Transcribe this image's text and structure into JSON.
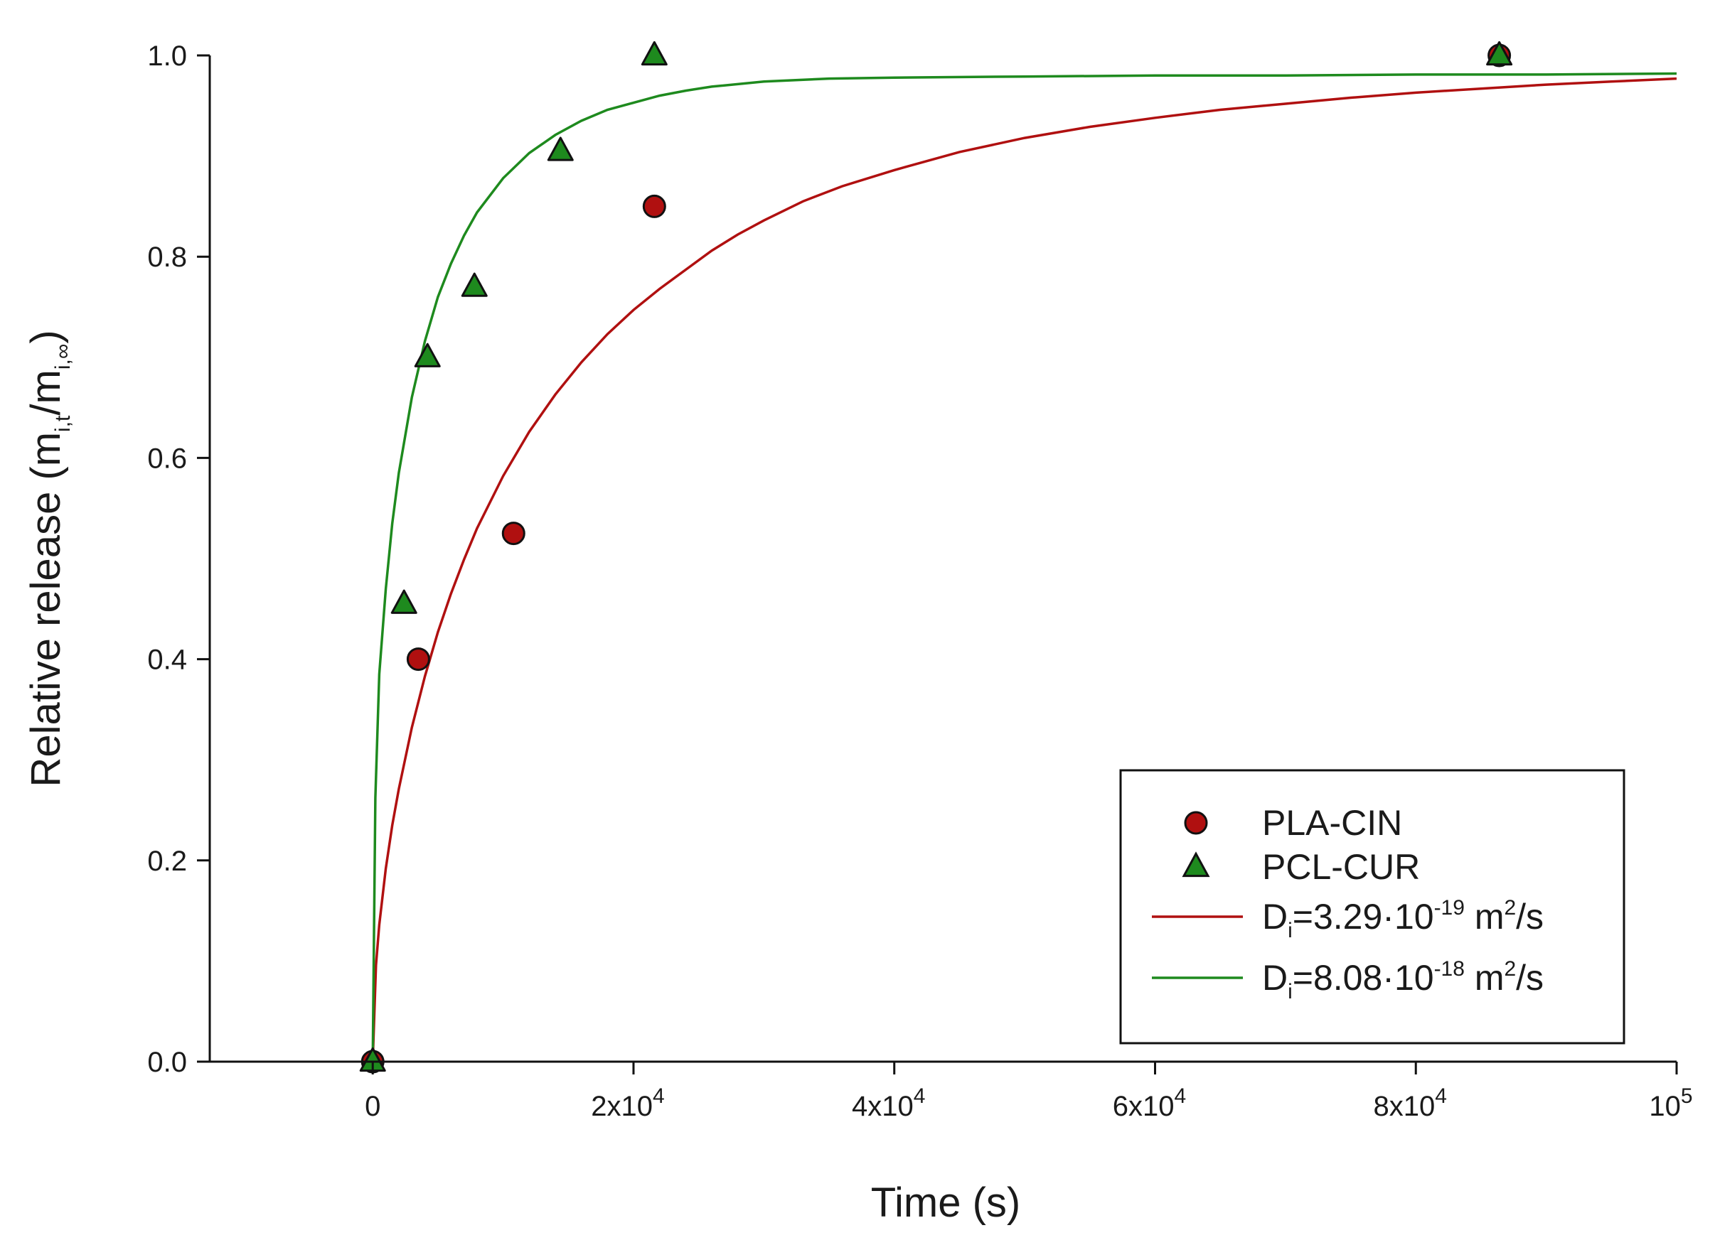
{
  "chart_data": {
    "type": "scatter",
    "xlabel": "Time (s)",
    "ylabel_main": "Relative release (m",
    "ylabel_sub1": "i,t",
    "ylabel_mid": "/m",
    "ylabel_sub2": "i,∞",
    "ylabel_end": ")",
    "xlim": [
      -12500,
      100000
    ],
    "ylim": [
      0,
      1.0
    ],
    "x_ticks": [
      {
        "value": 0,
        "base": "0",
        "exp": ""
      },
      {
        "value": 20000,
        "base": "2x10",
        "exp": "4"
      },
      {
        "value": 40000,
        "base": "4x10",
        "exp": "4"
      },
      {
        "value": 60000,
        "base": "6x10",
        "exp": "4"
      },
      {
        "value": 80000,
        "base": "8x10",
        "exp": "4"
      },
      {
        "value": 100000,
        "base": "10",
        "exp": "5"
      }
    ],
    "y_ticks": [
      {
        "value": 0.0,
        "label": "0.0"
      },
      {
        "value": 0.2,
        "label": "0.2"
      },
      {
        "value": 0.4,
        "label": "0.4"
      },
      {
        "value": 0.6,
        "label": "0.6"
      },
      {
        "value": 0.8,
        "label": "0.8"
      },
      {
        "value": 1.0,
        "label": "1.0"
      }
    ],
    "grid": false,
    "legend_position": "bottom-right",
    "series": [
      {
        "name": "PLA-CIN",
        "kind": "points",
        "marker": "circle",
        "color": "#b01010",
        "x": [
          0,
          3500,
          10800,
          21600,
          86400
        ],
        "y": [
          0.0,
          0.4,
          0.525,
          0.85,
          1.0
        ]
      },
      {
        "name": "PCL-CUR",
        "kind": "points",
        "marker": "triangle",
        "color": "#1e8a1e",
        "x": [
          0,
          2400,
          4200,
          7800,
          14400,
          21600,
          86400
        ],
        "y": [
          0.0,
          0.455,
          0.7,
          0.77,
          0.905,
          1.0,
          1.0
        ]
      },
      {
        "name_prefix": "D",
        "name_sub": "i",
        "name_value": "=3.29·10",
        "name_exp": "-19",
        "name_unit": " m",
        "name_unit_exp": "2",
        "name_unit_end": "/s",
        "kind": "curve",
        "color": "#b01010",
        "x": [
          0,
          250,
          500,
          1000,
          1500,
          2000,
          3000,
          4000,
          5000,
          6000,
          7000,
          8000,
          10000,
          12000,
          14000,
          16000,
          18000,
          20000,
          22000,
          24000,
          26000,
          28000,
          30000,
          33000,
          36000,
          40000,
          45000,
          50000,
          55000,
          60000,
          65000,
          70000,
          75000,
          80000,
          85000,
          90000,
          95000,
          100000
        ],
        "y": [
          0.0,
          0.096,
          0.136,
          0.192,
          0.235,
          0.271,
          0.332,
          0.383,
          0.427,
          0.465,
          0.499,
          0.53,
          0.582,
          0.626,
          0.663,
          0.695,
          0.723,
          0.747,
          0.768,
          0.787,
          0.806,
          0.822,
          0.836,
          0.855,
          0.87,
          0.886,
          0.904,
          0.918,
          0.929,
          0.938,
          0.946,
          0.952,
          0.958,
          0.963,
          0.967,
          0.971,
          0.974,
          0.977
        ]
      },
      {
        "name_prefix": "D",
        "name_sub": "i",
        "name_value": "=8.08·10",
        "name_exp": "-18",
        "name_unit": " m",
        "name_unit_exp": "2",
        "name_unit_end": "/s",
        "kind": "curve",
        "color": "#1e8a1e",
        "x": [
          0,
          200,
          500,
          1000,
          1500,
          2000,
          3000,
          4000,
          5000,
          6000,
          7000,
          8000,
          10000,
          12000,
          14000,
          16000,
          18000,
          20000,
          22000,
          24000,
          26000,
          30000,
          35000,
          40000,
          50000,
          60000,
          70000,
          80000,
          90000,
          100000
        ],
        "y": [
          0.0,
          0.262,
          0.385,
          0.47,
          0.535,
          0.585,
          0.66,
          0.716,
          0.76,
          0.793,
          0.821,
          0.844,
          0.878,
          0.903,
          0.921,
          0.935,
          0.946,
          0.953,
          0.96,
          0.965,
          0.969,
          0.974,
          0.977,
          0.978,
          0.979,
          0.98,
          0.98,
          0.981,
          0.981,
          0.982
        ]
      }
    ]
  }
}
